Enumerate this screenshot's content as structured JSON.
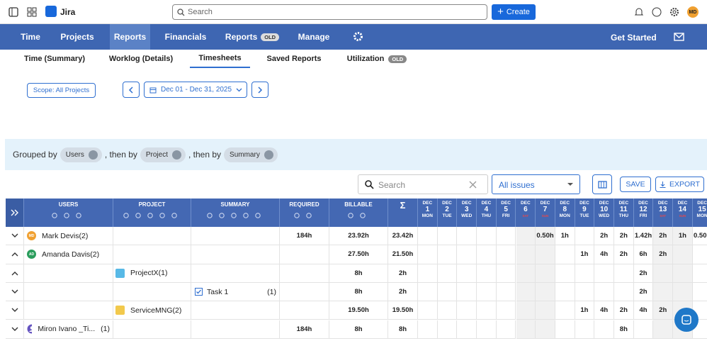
{
  "topbar": {
    "app_name": "Jira",
    "search_placeholder": "Search",
    "create_button": "Create",
    "avatar": "MD"
  },
  "nav": {
    "items": [
      {
        "label": "Time"
      },
      {
        "label": "Projects"
      },
      {
        "label": "Reports",
        "active": true
      },
      {
        "label": "Financials"
      },
      {
        "label": "Reports",
        "badge": "OLD"
      },
      {
        "label": "Manage"
      }
    ],
    "get_started": "Get Started"
  },
  "tabs": [
    {
      "label": "Time (Summary)"
    },
    {
      "label": "Worklog (Details)"
    },
    {
      "label": "Timesheets",
      "active": true
    },
    {
      "label": "Saved Reports"
    },
    {
      "label": "Utilization",
      "badge": "OLD"
    }
  ],
  "filters": {
    "scope": "Scope: All Projects",
    "date_range": "Dec 01 - Dec 31, 2025"
  },
  "grouping": {
    "label": "Grouped by",
    "chips": [
      "Users",
      "Project",
      "Summary"
    ],
    "separator": ", then by"
  },
  "toolbar": {
    "search_placeholder": "Search",
    "filter": "All issues",
    "save": "SAVE",
    "export": "EXPORT"
  },
  "table": {
    "columns": [
      "USERS",
      "PROJECT",
      "SUMMARY",
      "REQUIRED",
      "BILLABLE",
      "Σ"
    ],
    "days": [
      {
        "month": "DEC",
        "day": "1",
        "weekday": "MON"
      },
      {
        "month": "DEC",
        "day": "2",
        "weekday": "TUE"
      },
      {
        "month": "DEC",
        "day": "3",
        "weekday": "WED"
      },
      {
        "month": "DEC",
        "day": "4",
        "weekday": "THU"
      },
      {
        "month": "DEC",
        "day": "5",
        "weekday": "FRI"
      },
      {
        "month": "DEC",
        "day": "6",
        "weekday": "SAT",
        "weekend": true
      },
      {
        "month": "DEC",
        "day": "7",
        "weekday": "SUN",
        "weekend": true
      },
      {
        "month": "DEC",
        "day": "8",
        "weekday": "MON"
      },
      {
        "month": "DEC",
        "day": "9",
        "weekday": "TUE"
      },
      {
        "month": "DEC",
        "day": "10",
        "weekday": "WED"
      },
      {
        "month": "DEC",
        "day": "11",
        "weekday": "THU"
      },
      {
        "month": "DEC",
        "day": "12",
        "weekday": "FRI"
      },
      {
        "month": "DEC",
        "day": "13",
        "weekday": "SAT",
        "weekend": true
      },
      {
        "month": "DEC",
        "day": "14",
        "weekday": "SUN",
        "weekend": true
      },
      {
        "month": "DEC",
        "day": "15",
        "weekday": "MON"
      }
    ],
    "rows": [
      {
        "user": "Mark Devis(2)",
        "avatar": "MD",
        "expanded": false,
        "required": "184h",
        "billable": "23.92h",
        "total": "23.42h",
        "days": [
          null,
          null,
          null,
          null,
          null,
          null,
          "0.50h",
          "1h",
          null,
          "2h",
          "2h",
          "1.42h",
          "2h",
          "1h",
          "0.50h"
        ]
      },
      {
        "user": "Amanda Davis(2)",
        "avatar": "AD",
        "expanded": true,
        "billable": "27.50h",
        "total": "21.50h",
        "days": [
          null,
          null,
          null,
          null,
          null,
          null,
          null,
          null,
          "1h",
          "4h",
          "2h",
          "6h",
          "2h",
          null,
          null
        ]
      },
      {
        "project": "ProjectX(1)",
        "expanded": true,
        "billable": "8h",
        "total": "2h",
        "days": [
          null,
          null,
          null,
          null,
          null,
          null,
          null,
          null,
          null,
          null,
          null,
          "2h",
          null,
          null,
          null
        ]
      },
      {
        "summary": "Task 1",
        "count": "(1)",
        "expanded": false,
        "billable": "8h",
        "total": "2h",
        "days": [
          null,
          null,
          null,
          null,
          null,
          null,
          null,
          null,
          null,
          null,
          null,
          "2h",
          null,
          null,
          null
        ]
      },
      {
        "project": "ServiceMNG(2)",
        "expanded": false,
        "billable": "19.50h",
        "total": "19.50h",
        "days": [
          null,
          null,
          null,
          null,
          null,
          null,
          null,
          null,
          "1h",
          "4h",
          "2h",
          "4h",
          "2h",
          null,
          null
        ]
      },
      {
        "user": "Miron Ivano _Ti...",
        "count": "(1)",
        "expanded": false,
        "required": "184h",
        "billable": "8h",
        "total": "8h",
        "days": [
          null,
          null,
          null,
          null,
          null,
          null,
          null,
          null,
          null,
          null,
          "8h",
          null,
          null,
          null,
          null
        ]
      }
    ]
  }
}
